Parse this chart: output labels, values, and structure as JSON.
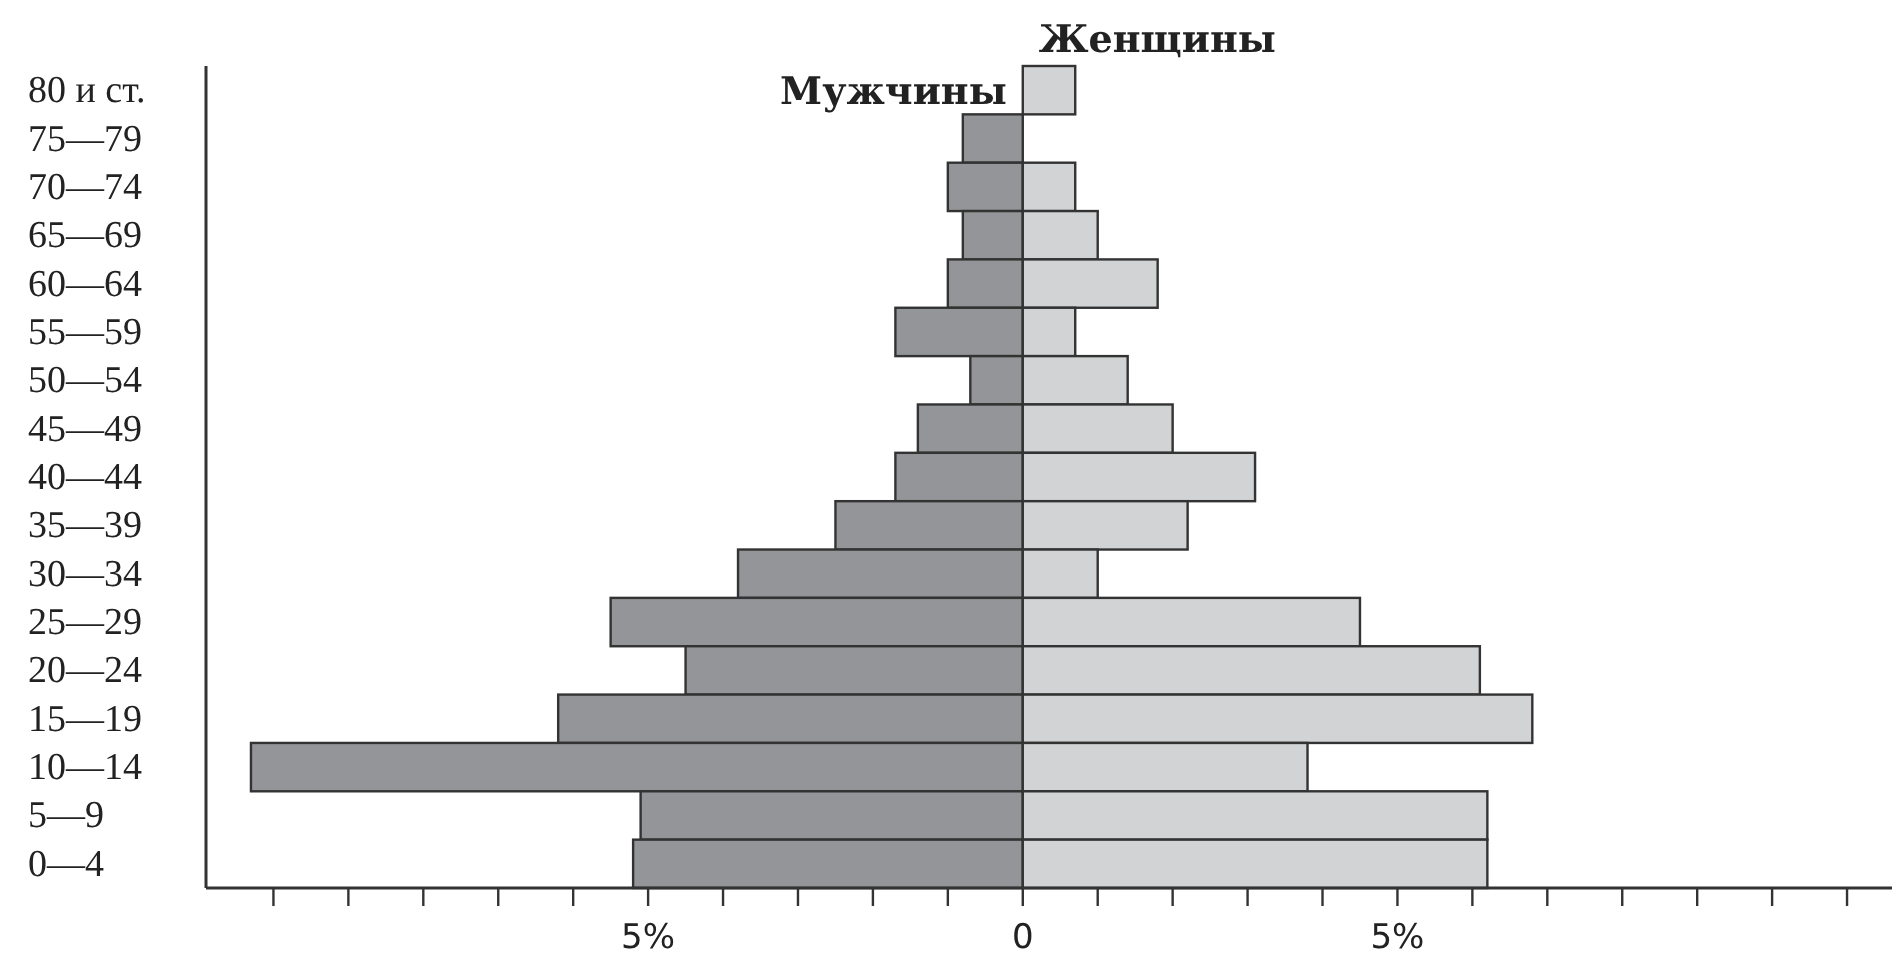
{
  "chart_data": {
    "type": "bar",
    "orientation": "horizontal",
    "stacked": true,
    "legend": "top",
    "categories": [
      "80 и ст.",
      "75—79",
      "70—74",
      "65—69",
      "60—64",
      "55—59",
      "50—54",
      "45—49",
      "40—44",
      "35—39",
      "30—34",
      "25—29",
      "20—24",
      "15—19",
      "10—14",
      "5—9",
      "0—4"
    ],
    "series": [
      {
        "name": "Мужчины",
        "color": "#939598",
        "values": [
          0,
          -0.8,
          -1.0,
          -0.8,
          -1.0,
          -1.7,
          -0.7,
          -1.4,
          -1.7,
          -2.5,
          -3.8,
          -5.5,
          -4.5,
          -6.2,
          -10.3,
          -5.1,
          -5.2
        ]
      },
      {
        "name": "Женщины",
        "color": "#d1d3d4",
        "values": [
          0.7,
          0,
          0.7,
          1.0,
          1.8,
          0.7,
          1.4,
          2.0,
          3.1,
          2.2,
          1.0,
          4.5,
          6.1,
          6.8,
          3.8,
          6.2,
          6.2
        ]
      }
    ],
    "xlim": [
      -10.9,
      11.6
    ],
    "xticks": [
      {
        "value": -10,
        "label": null
      },
      {
        "value": -9,
        "label": null
      },
      {
        "value": -8,
        "label": null
      },
      {
        "value": -7,
        "label": null
      },
      {
        "value": -6,
        "label": null
      },
      {
        "value": -5,
        "label": "5%"
      },
      {
        "value": -4,
        "label": null
      },
      {
        "value": -3,
        "label": null
      },
      {
        "value": -2,
        "label": null
      },
      {
        "value": -1,
        "label": null
      },
      0,
      {
        "value": 1,
        "label": null
      },
      {
        "value": 2,
        "label": null
      },
      {
        "value": 3,
        "label": null
      },
      {
        "value": 4,
        "label": null
      },
      {
        "value": 5,
        "label": "5%"
      },
      {
        "value": 6,
        "label": null
      },
      {
        "value": 7,
        "label": null
      },
      {
        "value": 8,
        "label": null
      },
      {
        "value": 9,
        "label": null
      },
      {
        "value": 10,
        "label": null
      },
      {
        "value": 11,
        "label": null
      }
    ]
  }
}
